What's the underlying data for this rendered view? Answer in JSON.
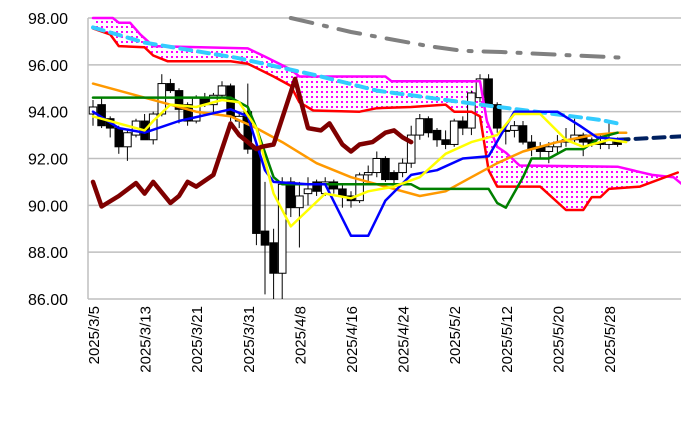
{
  "chart_data": {
    "type": "candlestick",
    "title": "",
    "xlabel": "",
    "ylabel": "",
    "ylim": [
      86,
      98
    ],
    "grid": true,
    "y_ticks": [
      "86.00",
      "88.00",
      "90.00",
      "92.00",
      "94.00",
      "96.00",
      "98.00"
    ],
    "y_tick_values": [
      86,
      88,
      90,
      92,
      94,
      96,
      98
    ],
    "x_tick_labels": [
      "2025/3/5",
      "2025/3/13",
      "2025/3/21",
      "2025/3/31",
      "2025/4/8",
      "2025/4/16",
      "2025/4/24",
      "2025/5/2",
      "2025/5/12",
      "2025/5/20",
      "2025/5/28"
    ],
    "x_tick_index": [
      0,
      6,
      12,
      18,
      24,
      30,
      36,
      42,
      48,
      54,
      60
    ],
    "x_range": [
      -0.5,
      68.5
    ],
    "candles_ohlc": [
      [
        93.9,
        94.5,
        93.4,
        94.2
      ],
      [
        94.3,
        94.6,
        93.3,
        93.4
      ],
      [
        93.7,
        93.8,
        92.9,
        93.3
      ],
      [
        93.3,
        93.4,
        92.2,
        92.5
      ],
      [
        92.5,
        93.2,
        91.9,
        93.1
      ],
      [
        93.0,
        93.7,
        92.9,
        93.6
      ],
      [
        93.6,
        93.9,
        92.8,
        92.8
      ],
      [
        92.8,
        94.0,
        92.6,
        93.9
      ],
      [
        93.9,
        95.6,
        93.8,
        95.2
      ],
      [
        95.2,
        95.4,
        94.8,
        94.9
      ],
      [
        94.9,
        95.0,
        93.5,
        94.1
      ],
      [
        94.3,
        94.4,
        93.4,
        93.6
      ],
      [
        93.6,
        94.7,
        93.5,
        94.6
      ],
      [
        94.6,
        94.8,
        94.2,
        94.3
      ],
      [
        94.3,
        94.8,
        93.9,
        94.7
      ],
      [
        94.7,
        95.3,
        94.6,
        95.1
      ],
      [
        95.1,
        95.2,
        93.6,
        93.8
      ],
      [
        93.6,
        94.0,
        93.3,
        93.8
      ],
      [
        94.0,
        95.2,
        92.2,
        92.4
      ],
      [
        92.4,
        92.5,
        88.3,
        88.8
      ],
      [
        88.9,
        91.0,
        86.2,
        88.3
      ],
      [
        88.4,
        89.0,
        86.0,
        87.1
      ],
      [
        87.1,
        91.2,
        86.0,
        90.9
      ],
      [
        91.0,
        91.2,
        89.5,
        89.9
      ],
      [
        89.9,
        91.0,
        88.2,
        90.4
      ],
      [
        90.5,
        91.2,
        90.0,
        90.7
      ],
      [
        91.0,
        91.1,
        90.4,
        90.6
      ],
      [
        90.5,
        91.2,
        90.4,
        91.0
      ],
      [
        91.0,
        91.1,
        90.5,
        90.7
      ],
      [
        90.7,
        90.9,
        89.9,
        90.4
      ],
      [
        90.4,
        90.6,
        89.9,
        90.2
      ],
      [
        90.2,
        91.4,
        90.1,
        91.3
      ],
      [
        91.3,
        91.7,
        91.0,
        91.4
      ],
      [
        91.4,
        92.3,
        91.2,
        92.0
      ],
      [
        92.0,
        92.1,
        91.0,
        91.1
      ],
      [
        91.4,
        91.5,
        90.8,
        91.1
      ],
      [
        91.4,
        92.0,
        91.2,
        91.8
      ],
      [
        91.8,
        93.4,
        91.6,
        93.0
      ],
      [
        93.0,
        93.9,
        92.8,
        93.7
      ],
      [
        93.7,
        93.8,
        92.9,
        93.1
      ],
      [
        93.2,
        93.3,
        92.5,
        92.8
      ],
      [
        92.8,
        93.2,
        92.4,
        92.6
      ],
      [
        92.6,
        93.7,
        92.5,
        93.6
      ],
      [
        93.6,
        93.8,
        93.0,
        93.3
      ],
      [
        93.3,
        94.9,
        93.0,
        94.8
      ],
      [
        94.6,
        95.6,
        94.4,
        95.4
      ],
      [
        95.4,
        95.6,
        94.2,
        94.3
      ],
      [
        94.3,
        94.4,
        93.1,
        93.3
      ],
      [
        93.2,
        93.4,
        92.6,
        93.2
      ],
      [
        93.2,
        93.6,
        92.9,
        93.4
      ],
      [
        93.4,
        93.6,
        92.6,
        92.7
      ],
      [
        92.7,
        93.0,
        92.1,
        92.4
      ],
      [
        92.5,
        92.7,
        92.0,
        92.3
      ],
      [
        92.3,
        92.7,
        91.8,
        92.5
      ],
      [
        92.5,
        93.0,
        92.2,
        92.7
      ],
      [
        92.7,
        93.3,
        92.5,
        92.8
      ],
      [
        92.8,
        93.7,
        92.6,
        93.0
      ],
      [
        93.0,
        93.1,
        92.1,
        92.7
      ],
      [
        92.8,
        92.9,
        92.5,
        92.6
      ],
      [
        92.7,
        93.0,
        92.4,
        92.6
      ],
      [
        92.6,
        93.5,
        92.4,
        92.8
      ],
      [
        92.8,
        92.9,
        92.5,
        92.6
      ]
    ],
    "series": [
      {
        "name": "senkou-span-b",
        "color": "#ff00ff",
        "width": 2.5,
        "dash": "",
        "points": [
          [
            0,
            98.0
          ],
          [
            2.3,
            98.0
          ],
          [
            3,
            97.8
          ],
          [
            4.3,
            97.8
          ],
          [
            5.5,
            97.3
          ],
          [
            7,
            96.8
          ],
          [
            18,
            96.7
          ],
          [
            20,
            96.35
          ],
          [
            23,
            95.8
          ],
          [
            24,
            95.5
          ],
          [
            34,
            95.5
          ],
          [
            34.7,
            95.3
          ],
          [
            45,
            95.3
          ],
          [
            45.8,
            93.6
          ],
          [
            47,
            92.5
          ],
          [
            48,
            92.25
          ],
          [
            49.6,
            91.7
          ],
          [
            61,
            91.65
          ],
          [
            65,
            91.3
          ],
          [
            67.5,
            91.2
          ],
          [
            68.5,
            90.9
          ]
        ]
      },
      {
        "name": "senkou-span-a",
        "color": "#ff0000",
        "width": 2.5,
        "dash": "",
        "points": [
          [
            0,
            97.55
          ],
          [
            2,
            97.3
          ],
          [
            3,
            96.8
          ],
          [
            6,
            96.75
          ],
          [
            7,
            96.4
          ],
          [
            8.7,
            96.15
          ],
          [
            16,
            96.15
          ],
          [
            18,
            96.05
          ],
          [
            21,
            95.5
          ],
          [
            23,
            95.1
          ],
          [
            24,
            94.4
          ],
          [
            25.6,
            94.05
          ],
          [
            31,
            94.0
          ],
          [
            33,
            94.15
          ],
          [
            37,
            94.2
          ],
          [
            41,
            94.3
          ],
          [
            42,
            94.0
          ],
          [
            44,
            94.0
          ],
          [
            45,
            93.8
          ],
          [
            46,
            91.5
          ],
          [
            47,
            90.8
          ],
          [
            52,
            90.8
          ],
          [
            55,
            89.8
          ],
          [
            57,
            89.8
          ],
          [
            58,
            90.35
          ],
          [
            59,
            90.35
          ],
          [
            60,
            90.7
          ],
          [
            63.6,
            90.8
          ],
          [
            68,
            91.4
          ]
        ]
      },
      {
        "name": "moving-average-200",
        "color": "#33ccff",
        "width": 4,
        "dash": "11,7",
        "points": [
          [
            0,
            97.6
          ],
          [
            6,
            96.95
          ],
          [
            16.7,
            96.3
          ],
          [
            26,
            95.55
          ],
          [
            33,
            94.9
          ],
          [
            45,
            94.3
          ],
          [
            59,
            93.65
          ],
          [
            61,
            93.5
          ]
        ]
      },
      {
        "name": "trend-projection",
        "color": "#808080",
        "width": 4,
        "dash": "22,12,3,12",
        "points": [
          [
            23,
            98.0
          ],
          [
            30,
            97.4
          ],
          [
            39,
            96.8
          ],
          [
            43,
            96.6
          ],
          [
            47.5,
            96.55
          ],
          [
            56,
            96.4
          ],
          [
            62,
            96.3
          ]
        ]
      },
      {
        "name": "ma-projection",
        "color": "#002060",
        "width": 4,
        "dash": "11,7",
        "points": [
          [
            61,
            92.8
          ],
          [
            68.5,
            92.95
          ]
        ]
      },
      {
        "name": "moving-average-75",
        "color": "#ff9900",
        "width": 2.5,
        "dash": "",
        "points": [
          [
            0,
            95.2
          ],
          [
            4,
            94.8
          ],
          [
            8,
            94.4
          ],
          [
            12,
            94.0
          ],
          [
            16,
            93.8
          ],
          [
            19,
            93.3
          ],
          [
            22,
            92.7
          ],
          [
            26,
            91.8
          ],
          [
            30,
            91.2
          ],
          [
            34,
            90.8
          ],
          [
            38,
            90.4
          ],
          [
            41,
            90.6
          ],
          [
            44,
            91.2
          ],
          [
            47,
            91.8
          ],
          [
            50,
            92.3
          ],
          [
            54,
            92.7
          ],
          [
            58,
            93.0
          ],
          [
            61,
            93.1
          ],
          [
            62,
            93.1
          ]
        ]
      },
      {
        "name": "kijun-sen",
        "color": "#008000",
        "width": 2.5,
        "dash": "",
        "points": [
          [
            0,
            94.6
          ],
          [
            16,
            94.6
          ],
          [
            18,
            94.2
          ],
          [
            19,
            93.3
          ],
          [
            21,
            91.2
          ],
          [
            22,
            90.9
          ],
          [
            37,
            90.9
          ],
          [
            38,
            90.7
          ],
          [
            46,
            90.7
          ],
          [
            47,
            90.1
          ],
          [
            48,
            89.9
          ],
          [
            50,
            91.2
          ],
          [
            51,
            92.0
          ],
          [
            53,
            92.0
          ],
          [
            55,
            92.4
          ],
          [
            57,
            92.4
          ],
          [
            59,
            92.9
          ],
          [
            61,
            93.1
          ]
        ]
      },
      {
        "name": "tenkan-sen",
        "color": "#0000ff",
        "width": 2.5,
        "dash": "",
        "points": [
          [
            0,
            94.0
          ],
          [
            3,
            93.3
          ],
          [
            6,
            93.1
          ],
          [
            10,
            93.6
          ],
          [
            16,
            94.1
          ],
          [
            18,
            93.8
          ],
          [
            20,
            91.5
          ],
          [
            21,
            91.0
          ],
          [
            25,
            90.9
          ],
          [
            27,
            90.9
          ],
          [
            30,
            88.7
          ],
          [
            32,
            88.7
          ],
          [
            34,
            90.2
          ],
          [
            37,
            91.3
          ],
          [
            40,
            91.5
          ],
          [
            43,
            92.0
          ],
          [
            46,
            92.1
          ],
          [
            49,
            94.0
          ],
          [
            54,
            94.0
          ],
          [
            56.6,
            93.4
          ],
          [
            58.6,
            92.9
          ],
          [
            61.6,
            92.8
          ]
        ]
      },
      {
        "name": "moving-average-25",
        "color": "#ffff00",
        "width": 2.5,
        "dash": "",
        "points": [
          [
            0,
            93.8
          ],
          [
            3,
            93.5
          ],
          [
            6,
            93.2
          ],
          [
            7,
            93.6
          ],
          [
            9,
            94.3
          ],
          [
            12,
            94.2
          ],
          [
            15,
            94.5
          ],
          [
            17,
            94.4
          ],
          [
            19,
            93.3
          ],
          [
            21,
            90.5
          ],
          [
            23,
            89.1
          ],
          [
            25,
            89.8
          ],
          [
            27,
            90.5
          ],
          [
            30,
            90.3
          ],
          [
            32,
            90.6
          ],
          [
            35,
            90.8
          ],
          [
            38,
            91.2
          ],
          [
            41,
            92.2
          ],
          [
            44,
            92.7
          ],
          [
            47,
            93.0
          ],
          [
            49,
            93.9
          ],
          [
            52,
            93.9
          ],
          [
            55,
            92.8
          ],
          [
            57,
            92.5
          ],
          [
            60,
            92.8
          ],
          [
            62,
            92.7
          ]
        ]
      },
      {
        "name": "chikou-span",
        "color": "#7f0000",
        "width": 4.5,
        "dash": "",
        "points": [
          [
            0,
            91.0
          ],
          [
            1,
            89.95
          ],
          [
            3,
            90.4
          ],
          [
            5,
            90.95
          ],
          [
            6,
            90.5
          ],
          [
            7,
            91.0
          ],
          [
            9,
            90.1
          ],
          [
            10,
            90.4
          ],
          [
            11,
            91.0
          ],
          [
            12,
            90.8
          ],
          [
            14,
            91.3
          ],
          [
            16,
            93.5
          ],
          [
            17,
            93.0
          ],
          [
            19,
            92.4
          ],
          [
            19.6,
            92.5
          ],
          [
            21,
            92.6
          ],
          [
            23.5,
            95.4
          ],
          [
            25,
            93.3
          ],
          [
            26.5,
            93.2
          ],
          [
            27.5,
            93.5
          ],
          [
            29,
            92.6
          ],
          [
            30,
            92.3
          ],
          [
            31,
            92.6
          ],
          [
            32.5,
            92.7
          ],
          [
            34,
            93.1
          ],
          [
            35,
            93.2
          ],
          [
            36,
            92.9
          ],
          [
            37,
            92.7
          ]
        ]
      }
    ],
    "cloud_fill_color": "#ff00ff"
  }
}
